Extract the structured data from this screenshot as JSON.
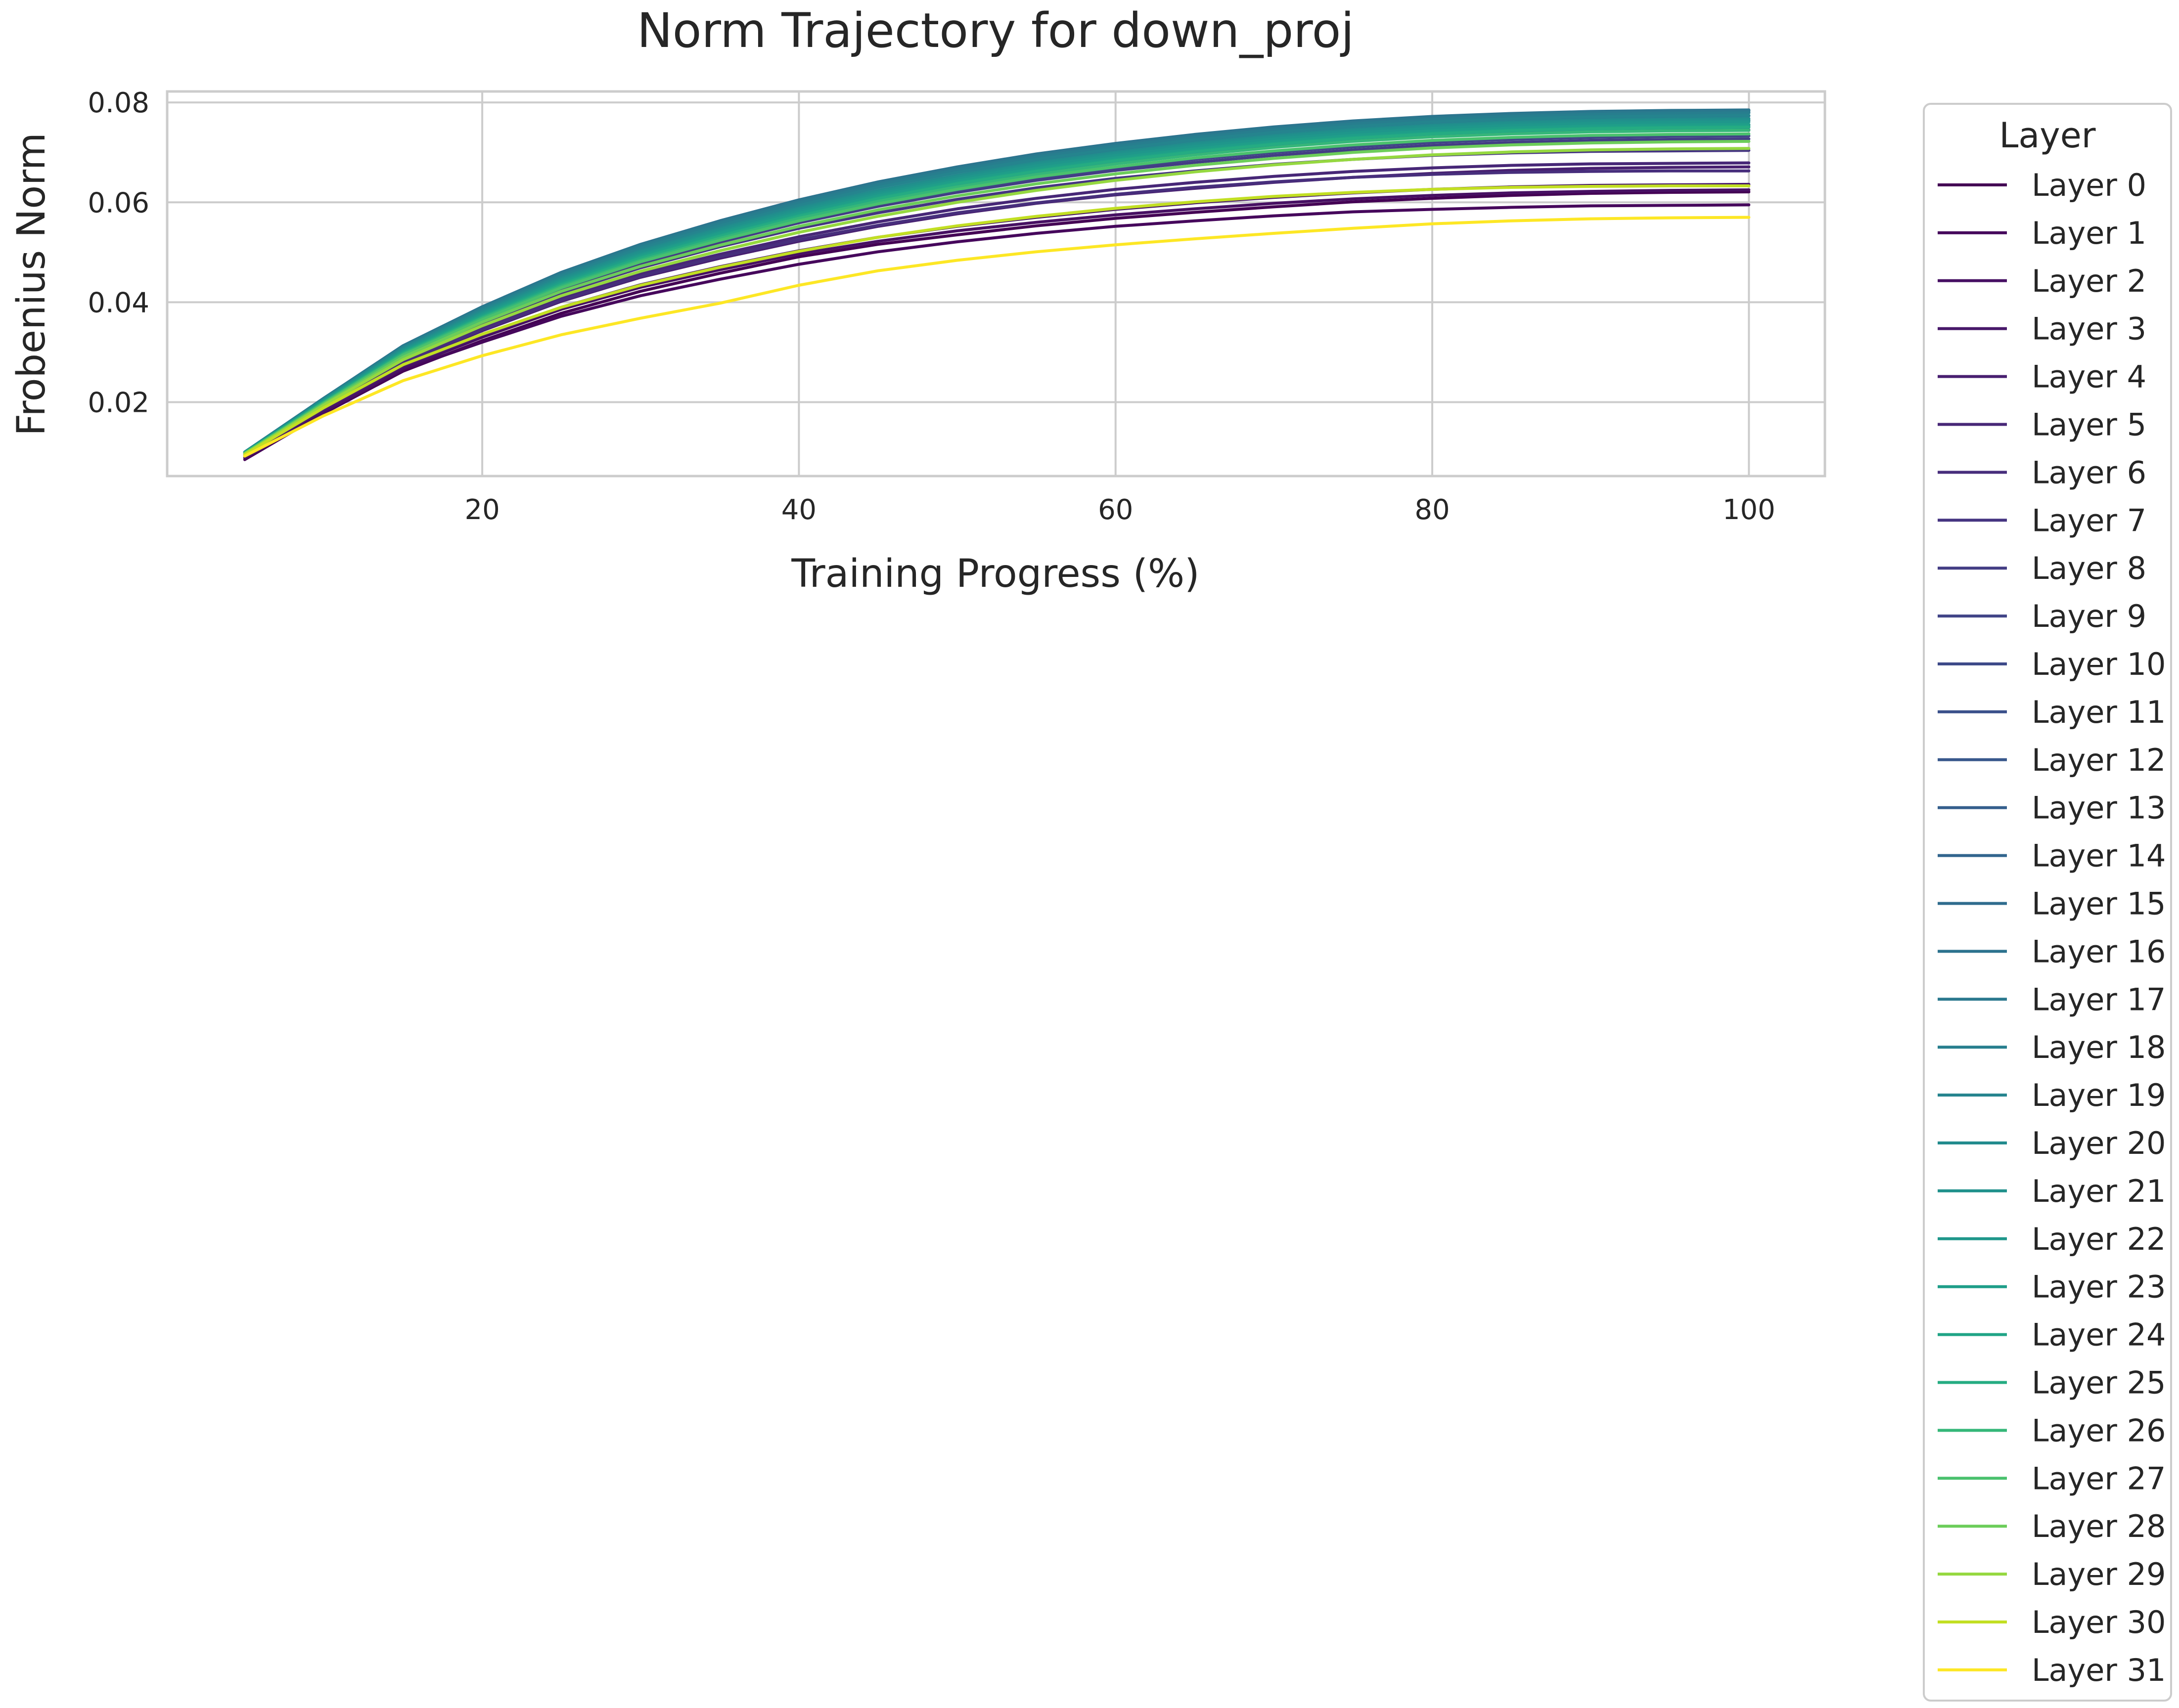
{
  "chart_data": {
    "type": "line",
    "title": "Norm Trajectory for down_proj",
    "xlabel": "Training Progress (%)",
    "ylabel": "Frobenius Norm",
    "xlim": [
      0.1,
      104.8
    ],
    "ylim": [
      0.0052,
      0.0822
    ],
    "xticks": [
      20,
      40,
      60,
      80,
      100
    ],
    "yticks": [
      0.02,
      0.04,
      0.06,
      0.08
    ],
    "xtick_labels": [
      "20",
      "40",
      "60",
      "80",
      "100"
    ],
    "ytick_labels": [
      "0.02",
      "0.04",
      "0.06",
      "0.08"
    ],
    "grid": true,
    "legend": {
      "title": "Layer",
      "placement": "outside-right"
    },
    "x": [
      5,
      10,
      15,
      20,
      25,
      30,
      35,
      40,
      45,
      50,
      55,
      60,
      65,
      70,
      75,
      80,
      85,
      90,
      95,
      100
    ],
    "series": [
      {
        "name": "Layer 0",
        "color": "#440154",
        "values": [
          0.0085,
          0.0178,
          0.0262,
          0.0323,
          0.0378,
          0.0422,
          0.0458,
          0.0491,
          0.0516,
          0.0535,
          0.0553,
          0.0568,
          0.058,
          0.0591,
          0.0601,
          0.0608,
          0.0614,
          0.0618,
          0.062,
          0.0621
        ]
      },
      {
        "name": "Layer 1",
        "color": "#46085c",
        "values": [
          0.009,
          0.0181,
          0.0265,
          0.032,
          0.0372,
          0.0413,
          0.0446,
          0.0476,
          0.0501,
          0.0521,
          0.0538,
          0.0552,
          0.0563,
          0.0573,
          0.0581,
          0.0586,
          0.059,
          0.0593,
          0.0594,
          0.0595
        ]
      },
      {
        "name": "Layer 2",
        "color": "#471063",
        "values": [
          0.0088,
          0.018,
          0.0268,
          0.033,
          0.0386,
          0.043,
          0.0465,
          0.0497,
          0.0522,
          0.0543,
          0.056,
          0.0575,
          0.0587,
          0.0598,
          0.0607,
          0.0614,
          0.0619,
          0.0622,
          0.0624,
          0.0625
        ]
      },
      {
        "name": "Layer 3",
        "color": "#48186a",
        "values": [
          0.0092,
          0.0185,
          0.0272,
          0.0334,
          0.039,
          0.0435,
          0.0471,
          0.0503,
          0.053,
          0.0552,
          0.057,
          0.0586,
          0.0599,
          0.061,
          0.0619,
          0.0626,
          0.0631,
          0.0634,
          0.0635,
          0.0636
        ]
      },
      {
        "name": "Layer 4",
        "color": "#481f70",
        "values": [
          0.0093,
          0.0188,
          0.0278,
          0.0343,
          0.0402,
          0.045,
          0.0488,
          0.0522,
          0.0552,
          0.0577,
          0.0598,
          0.0615,
          0.0628,
          0.064,
          0.065,
          0.0658,
          0.0664,
          0.0668,
          0.067,
          0.0671
        ]
      },
      {
        "name": "Layer 5",
        "color": "#472777",
        "values": [
          0.0094,
          0.019,
          0.0282,
          0.0348,
          0.0408,
          0.0457,
          0.0496,
          0.0531,
          0.0561,
          0.0587,
          0.0608,
          0.0626,
          0.064,
          0.0652,
          0.0662,
          0.0669,
          0.0674,
          0.0677,
          0.0678,
          0.0679
        ]
      },
      {
        "name": "Layer 6",
        "color": "#472e7c",
        "values": [
          0.0094,
          0.019,
          0.028,
          0.0345,
          0.0404,
          0.0452,
          0.0491,
          0.0525,
          0.0554,
          0.0579,
          0.0599,
          0.0616,
          0.063,
          0.0641,
          0.065,
          0.0656,
          0.066,
          0.0662,
          0.0663,
          0.0663
        ]
      },
      {
        "name": "Layer 7",
        "color": "#453581",
        "values": [
          0.0095,
          0.0193,
          0.0287,
          0.0357,
          0.0419,
          0.0469,
          0.0511,
          0.0548,
          0.0579,
          0.0606,
          0.0629,
          0.0648,
          0.0663,
          0.0676,
          0.0686,
          0.0694,
          0.0699,
          0.0702,
          0.0703,
          0.0704
        ]
      },
      {
        "name": "Layer 8",
        "color": "#433d84",
        "values": [
          0.0095,
          0.0195,
          0.029,
          0.0361,
          0.0425,
          0.0477,
          0.052,
          0.0559,
          0.0592,
          0.062,
          0.0644,
          0.0664,
          0.068,
          0.0694,
          0.0705,
          0.0714,
          0.072,
          0.0724,
          0.0726,
          0.0727
        ]
      },
      {
        "name": "Layer 9",
        "color": "#414487",
        "values": [
          0.0096,
          0.0196,
          0.0292,
          0.0364,
          0.0428,
          0.048,
          0.0524,
          0.0563,
          0.0596,
          0.0624,
          0.0649,
          0.0669,
          0.0686,
          0.07,
          0.0711,
          0.072,
          0.0726,
          0.073,
          0.0732,
          0.0733
        ]
      },
      {
        "name": "Layer 10",
        "color": "#3e4a89",
        "values": [
          0.0097,
          0.0198,
          0.0296,
          0.0369,
          0.0434,
          0.0487,
          0.0531,
          0.0571,
          0.0605,
          0.0634,
          0.0659,
          0.068,
          0.0697,
          0.0711,
          0.0723,
          0.0732,
          0.0738,
          0.0742,
          0.0744,
          0.0745
        ]
      },
      {
        "name": "Layer 11",
        "color": "#3b518b",
        "values": [
          0.0097,
          0.02,
          0.0299,
          0.0373,
          0.0439,
          0.0493,
          0.0538,
          0.0579,
          0.0614,
          0.0643,
          0.0668,
          0.0689,
          0.0706,
          0.0721,
          0.0733,
          0.0742,
          0.0748,
          0.0752,
          0.0754,
          0.0755
        ]
      },
      {
        "name": "Layer 12",
        "color": "#38588c",
        "values": [
          0.0098,
          0.0202,
          0.0303,
          0.0378,
          0.0445,
          0.05,
          0.0546,
          0.0587,
          0.0622,
          0.0651,
          0.0676,
          0.0697,
          0.0715,
          0.073,
          0.0742,
          0.0751,
          0.0757,
          0.0761,
          0.0763,
          0.0764
        ]
      },
      {
        "name": "Layer 13",
        "color": "#355f8d",
        "values": [
          0.0098,
          0.0204,
          0.0306,
          0.0382,
          0.045,
          0.0506,
          0.0553,
          0.0595,
          0.063,
          0.066,
          0.0685,
          0.0706,
          0.0724,
          0.0739,
          0.0751,
          0.076,
          0.0766,
          0.077,
          0.0772,
          0.0773
        ]
      },
      {
        "name": "Layer 14",
        "color": "#32658e",
        "values": [
          0.0099,
          0.0206,
          0.0309,
          0.0386,
          0.0455,
          0.0511,
          0.0558,
          0.06,
          0.0636,
          0.0666,
          0.0692,
          0.0713,
          0.0731,
          0.0746,
          0.0758,
          0.0767,
          0.0773,
          0.0777,
          0.0779,
          0.078
        ]
      },
      {
        "name": "Layer 15",
        "color": "#2f6c8e",
        "values": [
          0.01,
          0.0208,
          0.0312,
          0.039,
          0.0459,
          0.0515,
          0.0562,
          0.0604,
          0.064,
          0.067,
          0.0696,
          0.0717,
          0.0735,
          0.075,
          0.0762,
          0.0771,
          0.0777,
          0.0781,
          0.0783,
          0.0784
        ]
      },
      {
        "name": "Layer 16",
        "color": "#2c728e",
        "values": [
          0.01,
          0.0208,
          0.0313,
          0.0391,
          0.046,
          0.0516,
          0.0563,
          0.0605,
          0.0641,
          0.0671,
          0.0697,
          0.0718,
          0.0736,
          0.0751,
          0.0763,
          0.0772,
          0.0778,
          0.0782,
          0.0784,
          0.0785
        ]
      },
      {
        "name": "Layer 17",
        "color": "#2a788e",
        "values": [
          0.01,
          0.0208,
          0.0312,
          0.039,
          0.0459,
          0.0515,
          0.0561,
          0.0603,
          0.0639,
          0.0669,
          0.0695,
          0.0716,
          0.0734,
          0.0749,
          0.0761,
          0.077,
          0.0776,
          0.078,
          0.0782,
          0.0783
        ]
      },
      {
        "name": "Layer 18",
        "color": "#277e8e",
        "values": [
          0.01,
          0.0207,
          0.0311,
          0.0388,
          0.0456,
          0.0512,
          0.0558,
          0.0599,
          0.0635,
          0.0665,
          0.0691,
          0.0712,
          0.073,
          0.0745,
          0.0757,
          0.0766,
          0.0772,
          0.0776,
          0.0778,
          0.0779
        ]
      },
      {
        "name": "Layer 19",
        "color": "#25848e",
        "values": [
          0.01,
          0.0206,
          0.0309,
          0.0385,
          0.0453,
          0.0508,
          0.0553,
          0.0594,
          0.063,
          0.066,
          0.0686,
          0.0707,
          0.0725,
          0.074,
          0.0752,
          0.0761,
          0.0767,
          0.0771,
          0.0773,
          0.0774
        ]
      },
      {
        "name": "Layer 20",
        "color": "#228b8d",
        "values": [
          0.0099,
          0.0205,
          0.0307,
          0.0382,
          0.0449,
          0.0503,
          0.0548,
          0.0589,
          0.0624,
          0.0654,
          0.068,
          0.0701,
          0.0719,
          0.0734,
          0.0746,
          0.0755,
          0.0761,
          0.0765,
          0.0767,
          0.0768
        ]
      },
      {
        "name": "Layer 21",
        "color": "#20918c",
        "values": [
          0.0099,
          0.0204,
          0.0305,
          0.0379,
          0.0446,
          0.05,
          0.0545,
          0.0586,
          0.0621,
          0.0651,
          0.0677,
          0.0698,
          0.0716,
          0.0731,
          0.0743,
          0.0752,
          0.0758,
          0.0762,
          0.0764,
          0.0765
        ]
      },
      {
        "name": "Layer 22",
        "color": "#1f978b",
        "values": [
          0.0099,
          0.0203,
          0.0303,
          0.0377,
          0.0443,
          0.0496,
          0.0541,
          0.0582,
          0.0617,
          0.0647,
          0.0673,
          0.0694,
          0.0712,
          0.0727,
          0.0739,
          0.0748,
          0.0754,
          0.0758,
          0.076,
          0.0761
        ]
      },
      {
        "name": "Layer 23",
        "color": "#1f9e89",
        "values": [
          0.0099,
          0.0202,
          0.0301,
          0.0374,
          0.044,
          0.0493,
          0.0538,
          0.0578,
          0.0613,
          0.0643,
          0.0668,
          0.0689,
          0.0707,
          0.0722,
          0.0734,
          0.0743,
          0.0749,
          0.0753,
          0.0755,
          0.0756
        ]
      },
      {
        "name": "Layer 24",
        "color": "#20a486",
        "values": [
          0.0098,
          0.0201,
          0.0299,
          0.0372,
          0.0437,
          0.049,
          0.0534,
          0.0574,
          0.0609,
          0.0639,
          0.0664,
          0.0685,
          0.0703,
          0.0718,
          0.073,
          0.0739,
          0.0745,
          0.0749,
          0.0751,
          0.0752
        ]
      },
      {
        "name": "Layer 25",
        "color": "#25ac82",
        "values": [
          0.0098,
          0.02,
          0.0298,
          0.037,
          0.0435,
          0.0488,
          0.0532,
          0.0572,
          0.0607,
          0.0637,
          0.0662,
          0.0683,
          0.0701,
          0.0716,
          0.0728,
          0.0737,
          0.0743,
          0.0747,
          0.0749,
          0.075
        ]
      },
      {
        "name": "Layer 26",
        "color": "#35b779",
        "values": [
          0.0098,
          0.0199,
          0.0296,
          0.0368,
          0.0432,
          0.0484,
          0.0528,
          0.0568,
          0.0602,
          0.0631,
          0.0656,
          0.0677,
          0.0695,
          0.071,
          0.0722,
          0.0731,
          0.0737,
          0.0741,
          0.0743,
          0.0744
        ]
      },
      {
        "name": "Layer 27",
        "color": "#4ac16d",
        "values": [
          0.0097,
          0.0198,
          0.0294,
          0.0365,
          0.0429,
          0.0481,
          0.0524,
          0.0563,
          0.0597,
          0.0626,
          0.0651,
          0.0671,
          0.0689,
          0.0703,
          0.0715,
          0.0724,
          0.073,
          0.0734,
          0.0736,
          0.0737
        ]
      },
      {
        "name": "Layer 28",
        "color": "#6ccd5a",
        "values": [
          0.0097,
          0.0196,
          0.029,
          0.036,
          0.0422,
          0.0472,
          0.0514,
          0.0552,
          0.0585,
          0.0613,
          0.0637,
          0.0657,
          0.0674,
          0.0688,
          0.07,
          0.0709,
          0.0715,
          0.0719,
          0.0721,
          0.0722
        ]
      },
      {
        "name": "Layer 29",
        "color": "#95d840",
        "values": [
          0.0096,
          0.0194,
          0.0285,
          0.0353,
          0.0413,
          0.0462,
          0.0503,
          0.054,
          0.0572,
          0.06,
          0.0624,
          0.0644,
          0.0661,
          0.0675,
          0.0686,
          0.0695,
          0.0701,
          0.0705,
          0.0707,
          0.0708
        ]
      },
      {
        "name": "Layer 30",
        "color": "#c2df23",
        "values": [
          0.0095,
          0.0189,
          0.0275,
          0.0336,
          0.039,
          0.0434,
          0.047,
          0.0502,
          0.053,
          0.0553,
          0.0572,
          0.0588,
          0.0601,
          0.0612,
          0.062,
          0.0626,
          0.063,
          0.0632,
          0.0633,
          0.0633
        ]
      },
      {
        "name": "Layer 31",
        "color": "#fde725",
        "values": [
          0.0092,
          0.0173,
          0.0243,
          0.0293,
          0.0335,
          0.0368,
          0.0398,
          0.0434,
          0.0463,
          0.0484,
          0.0501,
          0.0515,
          0.0527,
          0.0538,
          0.0548,
          0.0557,
          0.0563,
          0.0567,
          0.0569,
          0.057
        ]
      }
    ]
  }
}
